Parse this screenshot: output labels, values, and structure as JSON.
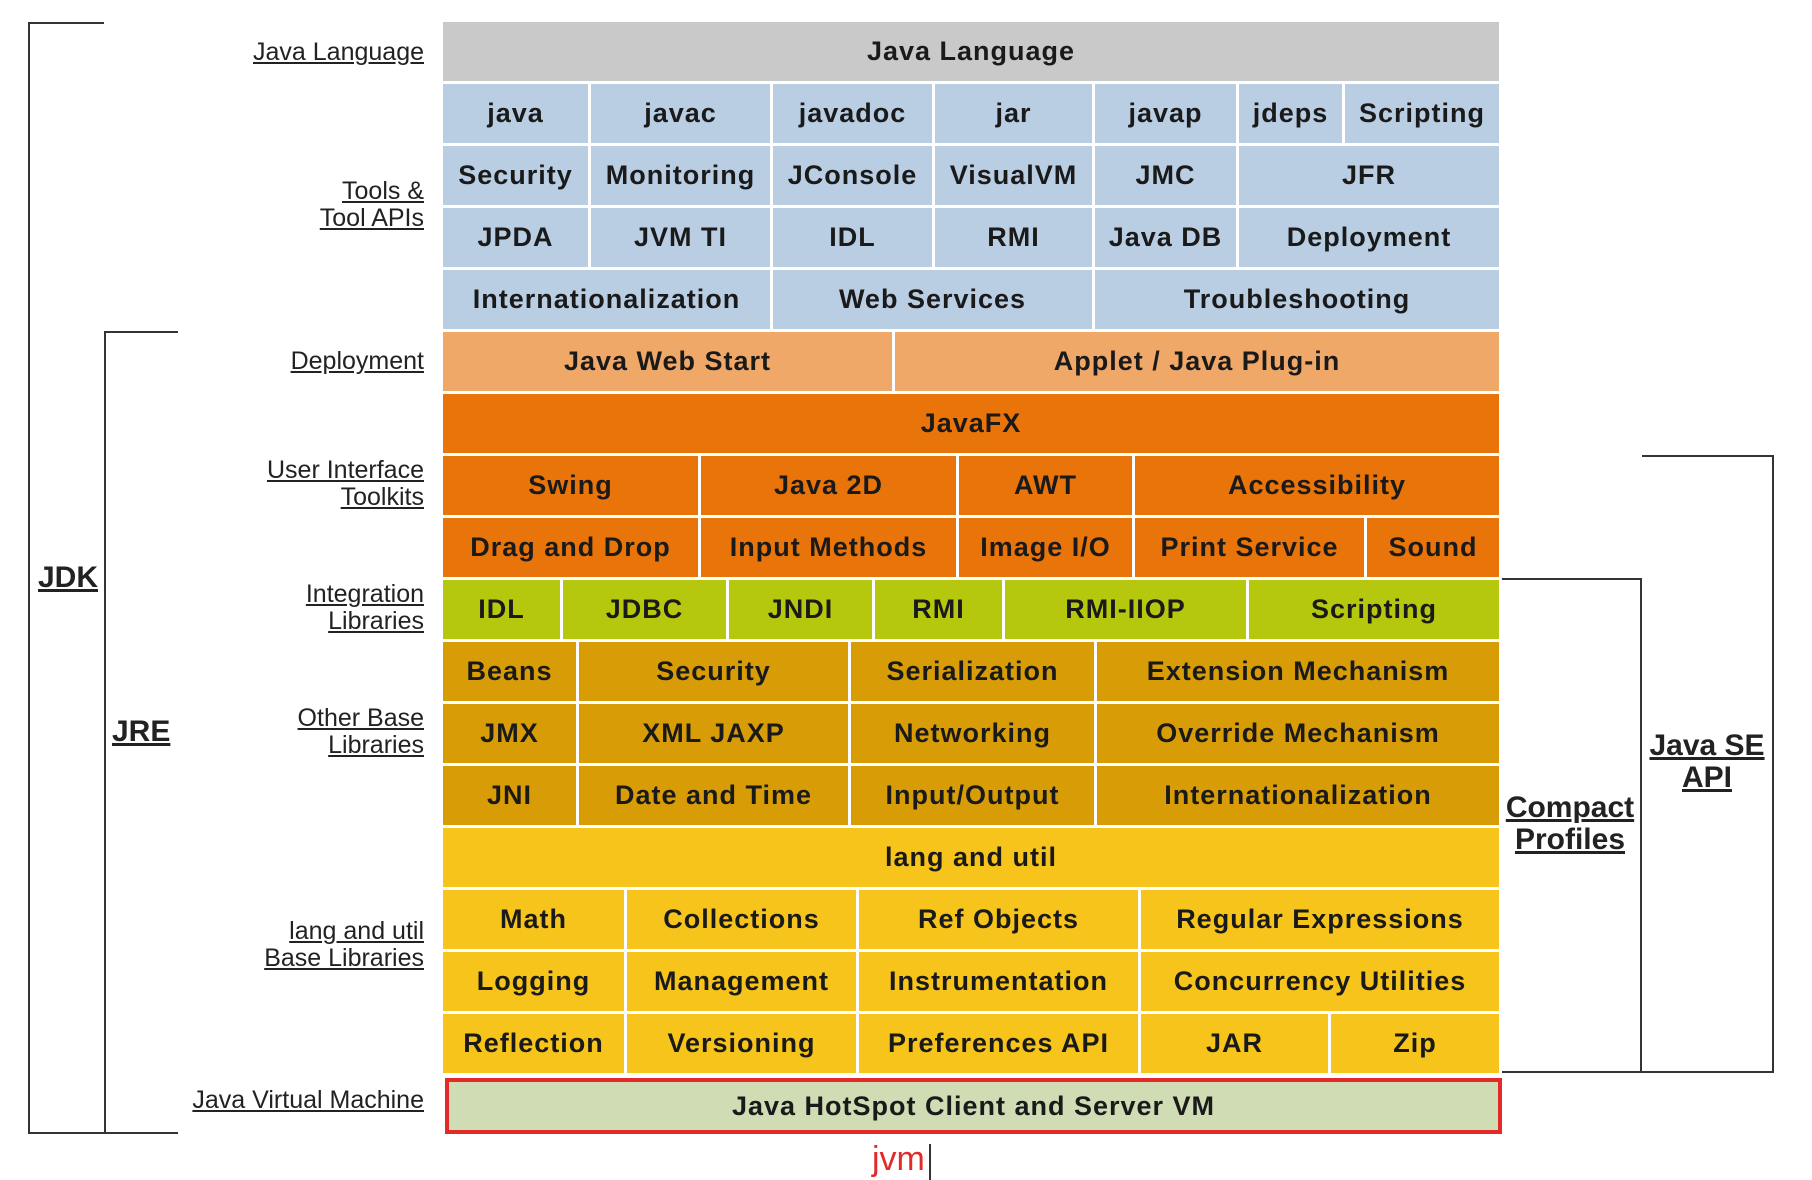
{
  "labels": {
    "jdk": "JDK",
    "jre": "JRE",
    "java_se_api": "Java SE\nAPI",
    "compact_profiles": "Compact\nProfiles",
    "java_language": "Java Language",
    "tools": "Tools &\nTool APIs",
    "deployment": "Deployment",
    "ui_toolkits": "User Interface\nToolkits",
    "integration": "Integration\nLibraries",
    "other_base": "Other Base\nLibraries",
    "lang_util_base": "lang and util\nBase Libraries",
    "jvm": "Java Virtual Machine"
  },
  "rows": {
    "java_language": [
      "Java Language"
    ],
    "tools_1": [
      "java",
      "javac",
      "javadoc",
      "jar",
      "javap",
      "jdeps",
      "Scripting"
    ],
    "tools_2": [
      "Security",
      "Monitoring",
      "JConsole",
      "VisualVM",
      "JMC",
      "JFR"
    ],
    "tools_3": [
      "JPDA",
      "JVM TI",
      "IDL",
      "RMI",
      "Java DB",
      "Deployment"
    ],
    "tools_4": [
      "Internationalization",
      "Web Services",
      "Troubleshooting"
    ],
    "deployment": [
      "Java Web Start",
      "Applet / Java Plug-in"
    ],
    "javafx": [
      "JavaFX"
    ],
    "ui_1": [
      "Swing",
      "Java 2D",
      "AWT",
      "Accessibility"
    ],
    "ui_2": [
      "Drag and Drop",
      "Input Methods",
      "Image I/O",
      "Print Service",
      "Sound"
    ],
    "integration": [
      "IDL",
      "JDBC",
      "JNDI",
      "RMI",
      "RMI-IIOP",
      "Scripting"
    ],
    "other_1": [
      "Beans",
      "Security",
      "Serialization",
      "Extension Mechanism"
    ],
    "other_2": [
      "JMX",
      "XML JAXP",
      "Networking",
      "Override Mechanism"
    ],
    "other_3": [
      "JNI",
      "Date and Time",
      "Input/Output",
      "Internationalization"
    ],
    "lang_util_header": [
      "lang and util"
    ],
    "lang_util_1": [
      "Math",
      "Collections",
      "Ref Objects",
      "Regular Expressions"
    ],
    "lang_util_2": [
      "Logging",
      "Management",
      "Instrumentation",
      "Concurrency Utilities"
    ],
    "lang_util_3": [
      "Reflection",
      "Versioning",
      "Preferences API",
      "JAR",
      "Zip"
    ],
    "jvm": [
      "Java HotSpot Client and Server VM"
    ]
  },
  "annotation": "jvm",
  "colors": {
    "java_language": "#c9c9c9",
    "tools": "#b9cde3",
    "deployment": "#f0a868",
    "ui_toolkits": "#e8740a",
    "integration": "#b5c80e",
    "other_base": "#d89c06",
    "lang_util": "#f6c41a",
    "jvm": "#cfdcb4",
    "highlight": "#e32a2a"
  }
}
